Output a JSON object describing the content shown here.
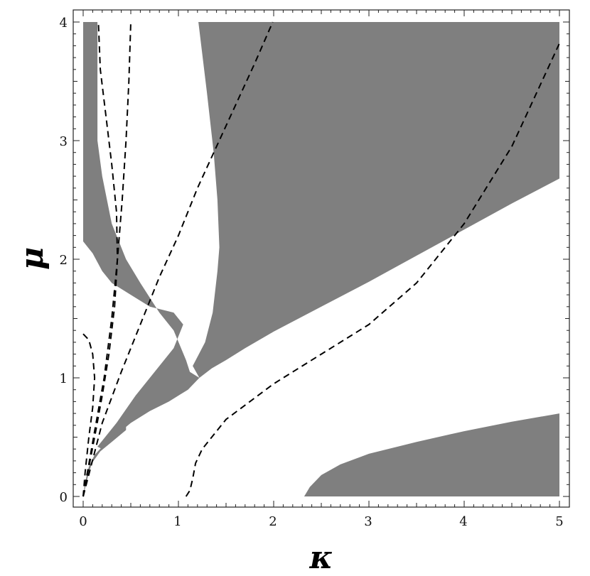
{
  "chart_data": {
    "type": "area",
    "xlabel": "κ",
    "ylabel": "μ",
    "xlim": [
      -0.1,
      5.1
    ],
    "ylim": [
      -0.1,
      4.05
    ],
    "x_ticks": [
      "0",
      "1",
      "2",
      "3",
      "4",
      "5"
    ],
    "y_ticks": [
      "0",
      "1",
      "2",
      "3",
      "4"
    ],
    "grid": false,
    "region_color": "#7f7f7f",
    "regions": [
      {
        "points": [
          [
            1.21,
            4.0
          ],
          [
            5.0,
            4.0
          ],
          [
            5.0,
            2.68
          ],
          [
            4.5,
            2.47
          ],
          [
            4.0,
            2.25
          ],
          [
            3.5,
            2.03
          ],
          [
            3.0,
            1.81
          ],
          [
            2.5,
            1.6
          ],
          [
            2.0,
            1.39
          ],
          [
            1.7,
            1.25
          ],
          [
            1.5,
            1.15
          ],
          [
            1.35,
            1.08
          ],
          [
            1.22,
            1.0
          ],
          [
            1.15,
            1.1
          ],
          [
            1.28,
            1.3
          ],
          [
            1.36,
            1.55
          ],
          [
            1.41,
            1.9
          ],
          [
            1.43,
            2.1
          ],
          [
            1.41,
            2.5
          ],
          [
            1.37,
            2.9
          ],
          [
            1.3,
            3.4
          ],
          [
            1.21,
            4.0
          ]
        ]
      },
      {
        "points": [
          [
            0.0,
            4.0
          ],
          [
            0.15,
            4.0
          ],
          [
            0.15,
            3.0
          ],
          [
            0.2,
            2.7
          ],
          [
            0.3,
            2.3
          ],
          [
            0.45,
            2.0
          ],
          [
            0.6,
            1.8
          ],
          [
            0.8,
            1.55
          ],
          [
            0.95,
            1.4
          ],
          [
            1.08,
            1.15
          ],
          [
            1.12,
            1.05
          ],
          [
            1.22,
            1.0
          ],
          [
            1.1,
            0.9
          ],
          [
            0.9,
            0.8
          ],
          [
            0.7,
            0.72
          ],
          [
            0.5,
            0.62
          ],
          [
            0.35,
            0.52
          ],
          [
            0.2,
            0.4
          ],
          [
            0.15,
            0.42
          ],
          [
            0.35,
            0.62
          ],
          [
            0.55,
            0.85
          ],
          [
            0.75,
            1.05
          ],
          [
            0.95,
            1.25
          ],
          [
            1.05,
            1.45
          ],
          [
            0.95,
            1.55
          ],
          [
            0.7,
            1.6
          ],
          [
            0.5,
            1.7
          ],
          [
            0.3,
            1.8
          ],
          [
            0.2,
            1.9
          ],
          [
            0.1,
            2.05
          ],
          [
            0.0,
            2.15
          ],
          [
            0.0,
            4.0
          ]
        ]
      },
      {
        "points": [
          [
            0.0,
            0.0
          ],
          [
            0.02,
            0.12
          ],
          [
            0.06,
            0.25
          ],
          [
            0.12,
            0.35
          ],
          [
            0.2,
            0.42
          ],
          [
            0.3,
            0.5
          ],
          [
            0.45,
            0.6
          ],
          [
            0.45,
            0.56
          ],
          [
            0.3,
            0.46
          ],
          [
            0.18,
            0.38
          ],
          [
            0.09,
            0.28
          ],
          [
            0.04,
            0.14
          ],
          [
            0.0,
            0.0
          ]
        ]
      },
      {
        "points": [
          [
            2.32,
            0.0
          ],
          [
            5.0,
            0.0
          ],
          [
            5.0,
            0.7
          ],
          [
            4.5,
            0.63
          ],
          [
            4.0,
            0.55
          ],
          [
            3.5,
            0.46
          ],
          [
            3.0,
            0.36
          ],
          [
            2.7,
            0.27
          ],
          [
            2.5,
            0.18
          ],
          [
            2.38,
            0.08
          ],
          [
            2.32,
            0.0
          ]
        ]
      }
    ],
    "dashed_curves": [
      {
        "points": [
          [
            1.08,
            0.0
          ],
          [
            1.12,
            0.05
          ],
          [
            1.15,
            0.15
          ],
          [
            1.18,
            0.28
          ],
          [
            1.25,
            0.4
          ],
          [
            1.5,
            0.65
          ],
          [
            2.0,
            0.95
          ],
          [
            2.5,
            1.2
          ],
          [
            3.0,
            1.45
          ],
          [
            3.5,
            1.8
          ],
          [
            4.0,
            2.3
          ],
          [
            4.5,
            2.95
          ],
          [
            5.0,
            3.82
          ]
        ]
      },
      {
        "points": [
          [
            0.0,
            1.37
          ],
          [
            0.06,
            1.32
          ],
          [
            0.1,
            1.2
          ],
          [
            0.12,
            1.0
          ],
          [
            0.1,
            0.75
          ],
          [
            0.06,
            0.5
          ],
          [
            0.02,
            0.2
          ],
          [
            0.0,
            0.0
          ]
        ]
      },
      {
        "points": [
          [
            0.0,
            0.0
          ],
          [
            0.2,
            0.62
          ],
          [
            0.4,
            1.05
          ],
          [
            0.6,
            1.45
          ],
          [
            0.8,
            1.85
          ],
          [
            1.0,
            2.2
          ],
          [
            1.2,
            2.6
          ],
          [
            1.4,
            2.95
          ],
          [
            1.6,
            3.3
          ],
          [
            1.8,
            3.65
          ],
          [
            1.99,
            4.0
          ]
        ]
      },
      {
        "points": [
          [
            0.0,
            0.0
          ],
          [
            0.12,
            0.55
          ],
          [
            0.22,
            1.0
          ],
          [
            0.3,
            1.5
          ],
          [
            0.36,
            2.0
          ],
          [
            0.41,
            2.5
          ],
          [
            0.45,
            3.0
          ],
          [
            0.48,
            3.5
          ],
          [
            0.5,
            4.0
          ]
        ]
      },
      {
        "points": [
          [
            0.0,
            0.0
          ],
          [
            0.12,
            0.5
          ],
          [
            0.2,
            0.85
          ],
          [
            0.27,
            1.2
          ],
          [
            0.33,
            1.6
          ],
          [
            0.36,
            2.0
          ],
          [
            0.35,
            2.4
          ],
          [
            0.3,
            2.8
          ],
          [
            0.24,
            3.2
          ],
          [
            0.18,
            3.6
          ],
          [
            0.16,
            4.0
          ]
        ]
      }
    ]
  }
}
